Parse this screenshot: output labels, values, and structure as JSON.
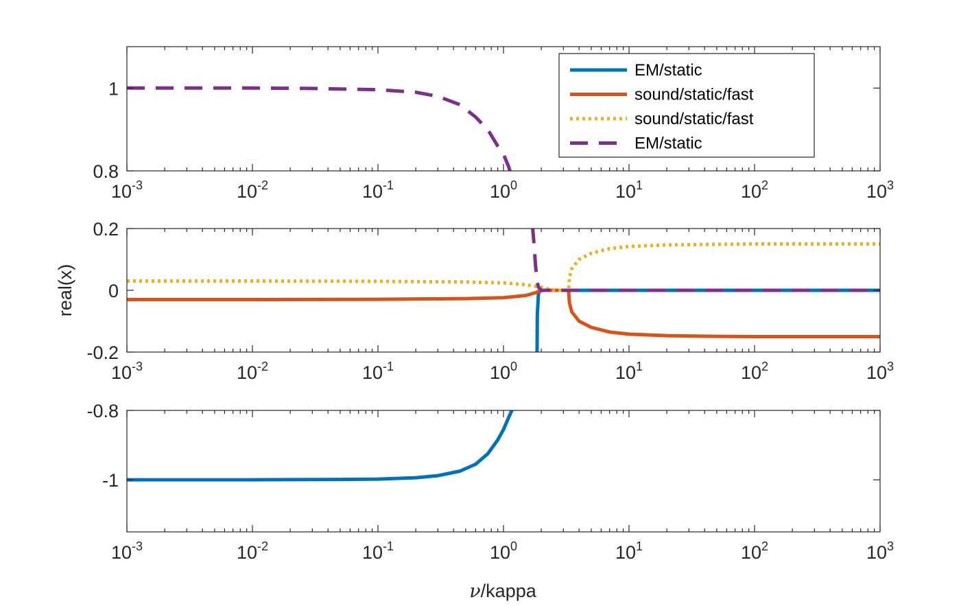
{
  "chart_data": {
    "type": "line",
    "x_scale": "log",
    "xlim": [
      0.001,
      1000
    ],
    "x_ticks": [
      0.001,
      0.01,
      0.1,
      1,
      10,
      100,
      1000
    ],
    "x_tick_labels": [
      {
        "base": "10",
        "exp": "-3"
      },
      {
        "base": "10",
        "exp": "-2"
      },
      {
        "base": "10",
        "exp": "-1"
      },
      {
        "base": "10",
        "exp": "0"
      },
      {
        "base": "10",
        "exp": "1"
      },
      {
        "base": "10",
        "exp": "2"
      },
      {
        "base": "10",
        "exp": "3"
      }
    ],
    "xlabel": {
      "symbol": "ν",
      "text": "/kappa"
    },
    "ylabel": "real(x)",
    "grid": false,
    "legend": {
      "placement": "top-right",
      "entries": [
        {
          "label": "EM/static",
          "color": "#0072BD",
          "style": "solid"
        },
        {
          "label": "sound/static/fast",
          "color": "#D95319",
          "style": "solid"
        },
        {
          "label": "sound/static/fast",
          "color": "#EDB120",
          "style": "dotted"
        },
        {
          "label": "EM/static",
          "color": "#7E2F8E",
          "style": "dashed"
        }
      ]
    },
    "panels": [
      {
        "ylim": [
          0.8,
          1.1
        ],
        "yticks": [
          0.8,
          1
        ],
        "ytick_labels": [
          "0.8",
          "1"
        ],
        "series": [
          {
            "legend_index": 3,
            "x": [
              0.001,
              0.01,
              0.03,
              0.1,
              0.2,
              0.3,
              0.45,
              0.6,
              0.75,
              0.9,
              1.0,
              1.1,
              1.15
            ],
            "y": [
              1.0,
              1.0,
              0.999,
              0.996,
              0.99,
              0.98,
              0.96,
              0.93,
              0.9,
              0.86,
              0.84,
              0.81,
              0.79
            ]
          }
        ]
      },
      {
        "ylim": [
          -0.2,
          0.2
        ],
        "yticks": [
          -0.2,
          0,
          0.2
        ],
        "ytick_labels": [
          "-0.2",
          "0",
          "0.2"
        ],
        "series": [
          {
            "legend_index": 0,
            "x": [
              1.85,
              1.86,
              1.9,
              1.95,
              2.0,
              2.1,
              2.3,
              2.6,
              3.0,
              5,
              10,
              100,
              1000
            ],
            "y": [
              -0.21,
              -0.08,
              -0.01,
              -0.003,
              -0.001,
              0.0,
              0.0,
              0.0,
              0.0,
              0.0,
              0.0,
              0.0,
              0.0
            ]
          },
          {
            "legend_index": 1,
            "x": [
              0.001,
              0.01,
              0.1,
              0.5,
              1.0,
              1.5,
              1.8,
              2.0,
              3.3,
              3.35,
              3.5,
              4,
              5,
              7,
              10,
              20,
              50,
              100,
              1000
            ],
            "y": [
              -0.03,
              -0.03,
              -0.029,
              -0.027,
              -0.024,
              -0.017,
              -0.008,
              0.0,
              0.0,
              -0.04,
              -0.07,
              -0.1,
              -0.12,
              -0.135,
              -0.142,
              -0.147,
              -0.149,
              -0.15,
              -0.15
            ]
          },
          {
            "legend_index": 2,
            "x": [
              0.001,
              0.01,
              0.1,
              0.5,
              1.0,
              1.5,
              2.0,
              2.4,
              2.6,
              3.3,
              3.35,
              3.5,
              4,
              5,
              7,
              10,
              20,
              50,
              100,
              1000
            ],
            "y": [
              0.03,
              0.03,
              0.029,
              0.027,
              0.024,
              0.018,
              0.01,
              0.002,
              0.0,
              0.0,
              0.04,
              0.07,
              0.1,
              0.12,
              0.135,
              0.142,
              0.147,
              0.149,
              0.15,
              0.15
            ]
          },
          {
            "legend_index": 3,
            "x": [
              1.7,
              1.75,
              1.8,
              1.85,
              1.9,
              2.0,
              2.5,
              3.0,
              5,
              10,
              100,
              1000
            ],
            "y": [
              0.21,
              0.15,
              0.08,
              0.03,
              0.01,
              0.0,
              0.0,
              0.0,
              0.0,
              0.0,
              0.0,
              0.0
            ]
          }
        ]
      },
      {
        "ylim": [
          -1.15,
          -0.8
        ],
        "yticks": [
          -1,
          -0.8
        ],
        "ytick_labels": [
          "-1",
          "-0.8"
        ],
        "series": [
          {
            "legend_index": 0,
            "x": [
              0.001,
              0.01,
              0.05,
              0.1,
              0.2,
              0.3,
              0.45,
              0.6,
              0.75,
              0.9,
              1.0,
              1.1,
              1.2
            ],
            "y": [
              -1.0,
              -1.0,
              -0.999,
              -0.998,
              -0.994,
              -0.988,
              -0.975,
              -0.955,
              -0.925,
              -0.885,
              -0.855,
              -0.82,
              -0.79
            ]
          }
        ]
      }
    ]
  }
}
